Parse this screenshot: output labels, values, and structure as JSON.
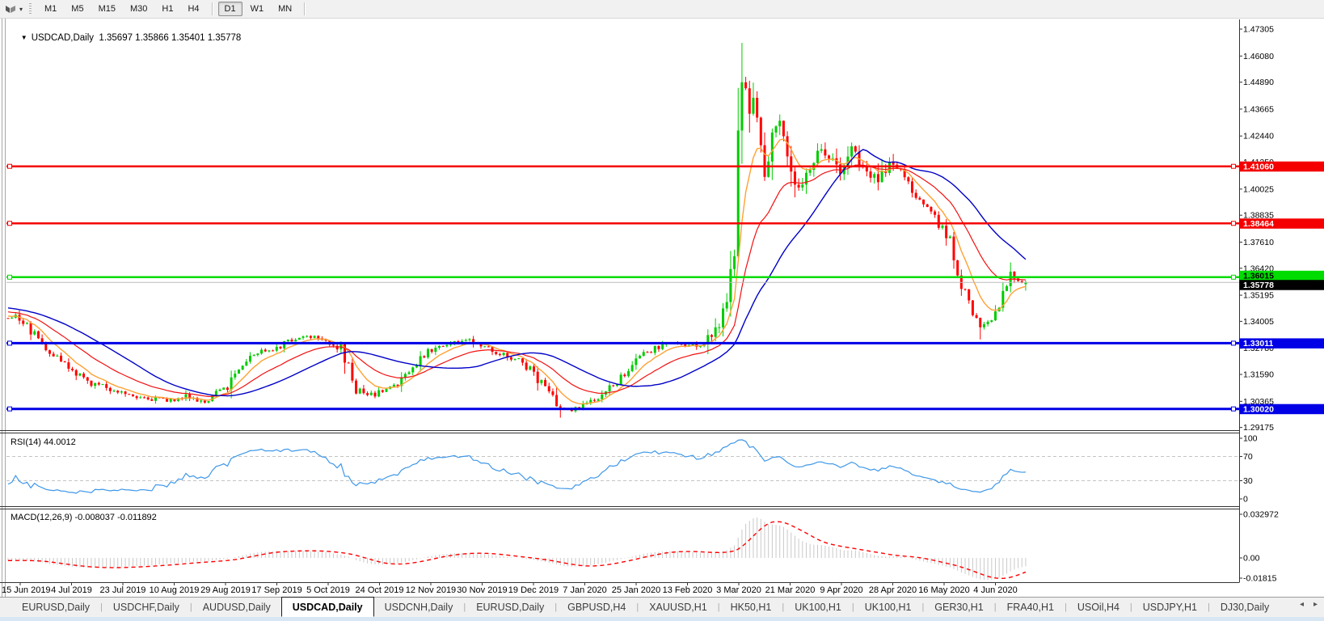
{
  "toolbar": {
    "caret": "▾",
    "timeframes": [
      {
        "label": "M1",
        "active": false
      },
      {
        "label": "M5",
        "active": false
      },
      {
        "label": "M15",
        "active": false
      },
      {
        "label": "M30",
        "active": false
      },
      {
        "label": "H1",
        "active": false
      },
      {
        "label": "H4",
        "active": false
      },
      {
        "label": "D1",
        "active": true
      },
      {
        "label": "W1",
        "active": false
      },
      {
        "label": "MN",
        "active": false
      }
    ]
  },
  "chart": {
    "dropdown_caret": "▼",
    "symbol": "USDCAD,Daily",
    "ohlc_text": "1.35697 1.35866 1.35401 1.35778"
  },
  "price_axis": {
    "ticks": [
      "1.47305",
      "1.46080",
      "1.44890",
      "1.43665",
      "1.42440",
      "1.41250",
      "1.40025",
      "1.38835",
      "1.37610",
      "1.36420",
      "1.35195",
      "1.34005",
      "1.32780",
      "1.31590",
      "1.30365",
      "1.29175"
    ]
  },
  "time_axis": {
    "dates": [
      "15 Jun 2019",
      "4 Jul 2019",
      "23 Jul 2019",
      "10 Aug 2019",
      "29 Aug 2019",
      "17 Sep 2019",
      "5 Oct 2019",
      "24 Oct 2019",
      "12 Nov 2019",
      "30 Nov 2019",
      "19 Dec 2019",
      "7 Jan 2020",
      "25 Jan 2020",
      "13 Feb 2020",
      "3 Mar 2020",
      "21 Mar 2020",
      "9 Apr 2020",
      "28 Apr 2020",
      "16 May 2020",
      "4 Jun 2020"
    ]
  },
  "levels": [
    {
      "label": "1.41060",
      "price": 1.4106,
      "color": "#F40000",
      "text_color": "#FFFFFF",
      "width": 2.5
    },
    {
      "label": "1.38464",
      "price": 1.38464,
      "color": "#F40000",
      "text_color": "#FFFFFF",
      "width": 2.5
    },
    {
      "label": "1.36015",
      "price": 1.36015,
      "color": "#00DC00",
      "text_color": "#000000",
      "width": 2.5
    },
    {
      "label": "1.33011",
      "price": 1.33011,
      "color": "#0000E6",
      "text_color": "#FFFFFF",
      "width": 3
    },
    {
      "label": "1.30020",
      "price": 1.3002,
      "color": "#0000E6",
      "text_color": "#FFFFFF",
      "width": 3
    }
  ],
  "current_price": {
    "label": "1.35778",
    "price": 1.35778,
    "line_color": "#BBBBBB",
    "badge_bg": "#000000",
    "text_color": "#FFFFFF"
  },
  "rsi_panel": {
    "label": "RSI(14) 44.0012",
    "ticks": [
      {
        "label": "100",
        "value": 100
      },
      {
        "label": "70",
        "value": 70
      },
      {
        "label": "30",
        "value": 30
      },
      {
        "label": "0",
        "value": 0
      }
    ],
    "dashed_levels": [
      70,
      30
    ]
  },
  "macd_panel": {
    "label": "MACD(12,26,9) -0.008037 -0.011892",
    "ticks": [
      {
        "label": "0.032972",
        "value": 0.032972
      },
      {
        "label": "0.00",
        "value": 0
      },
      {
        "label": "-0.01815",
        "value": -0.01815
      }
    ]
  },
  "tabs": {
    "items": [
      {
        "label": "EURUSD,Daily",
        "active": false
      },
      {
        "label": "USDCHF,Daily",
        "active": false
      },
      {
        "label": "AUDUSD,Daily",
        "active": false
      },
      {
        "label": "USDCAD,Daily",
        "active": true
      },
      {
        "label": "USDCNH,Daily",
        "active": false
      },
      {
        "label": "EURUSD,Daily",
        "active": false
      },
      {
        "label": "GBPUSD,H4",
        "active": false
      },
      {
        "label": "XAUUSD,H1",
        "active": false
      },
      {
        "label": "HK50,H1",
        "active": false
      },
      {
        "label": "UK100,H1",
        "active": false
      },
      {
        "label": "UK100,H1",
        "active": false
      },
      {
        "label": "GER30,H1",
        "active": false
      },
      {
        "label": "FRA40,H1",
        "active": false
      },
      {
        "label": "USOil,H4",
        "active": false
      },
      {
        "label": "USDJPY,H1",
        "active": false
      },
      {
        "label": "DJ30,Daily",
        "active": false
      }
    ],
    "scroll_left": "◂",
    "scroll_right": "▸"
  },
  "colors": {
    "bull": "#00CC00",
    "bear": "#FF0000",
    "ma_fast": "#FFA133",
    "ma_mid": "#F21010",
    "ma_slow": "#0000C8",
    "rsi": "#3E97E8",
    "rsi_dash": "#C4C4C4",
    "macd_hist": "#C9C9C9",
    "macd_signal": "#FF0000",
    "axis_line": "#333333",
    "axis_text": "#000000"
  },
  "chart_data": {
    "type": "candlestick",
    "symbol": "USDCAD",
    "timeframe": "Daily",
    "current_bar": {
      "open": 1.35697,
      "high": 1.35866,
      "low": 1.35401,
      "close": 1.35778
    },
    "visible_price_range": [
      1.29175,
      1.47305
    ],
    "horizontal_levels": [
      1.4106,
      1.38464,
      1.36015,
      1.33011,
      1.3002
    ],
    "indicators": [
      {
        "name": "RSI",
        "period": 14,
        "value": 44.0012,
        "range": [
          0,
          100
        ],
        "marked_levels": [
          30,
          70
        ]
      },
      {
        "name": "MACD",
        "fast": 12,
        "slow": 26,
        "signal": 9,
        "macd_value": -0.008037,
        "signal_value": -0.011892,
        "visible_range": [
          -0.01815,
          0.032972
        ]
      },
      {
        "name": "MA-fast"
      },
      {
        "name": "MA-mid"
      },
      {
        "name": "MA-slow"
      }
    ],
    "extremes": {
      "spike_high": {
        "index": 194,
        "price": 1.4668
      },
      "june_low": {
        "index": 257,
        "price": 1.3318
      },
      "jan_low": {
        "index": 146,
        "price": 1.2962
      }
    },
    "close_waypoints": [
      [
        0,
        1.3415
      ],
      [
        2,
        1.344
      ],
      [
        6,
        1.336
      ],
      [
        11,
        1.327
      ],
      [
        15,
        1.32
      ],
      [
        21,
        1.3125
      ],
      [
        28,
        1.309
      ],
      [
        34,
        1.3063
      ],
      [
        41,
        1.304
      ],
      [
        47,
        1.3058
      ],
      [
        53,
        1.3035
      ],
      [
        58,
        1.311
      ],
      [
        62,
        1.3215
      ],
      [
        66,
        1.326
      ],
      [
        71,
        1.3285
      ],
      [
        75,
        1.3315
      ],
      [
        79,
        1.3338
      ],
      [
        83,
        1.333
      ],
      [
        88,
        1.327
      ],
      [
        92,
        1.3095
      ],
      [
        95,
        1.306
      ],
      [
        98,
        1.3075
      ],
      [
        103,
        1.312
      ],
      [
        107,
        1.3185
      ],
      [
        111,
        1.3265
      ],
      [
        115,
        1.3295
      ],
      [
        121,
        1.3315
      ],
      [
        126,
        1.3295
      ],
      [
        130,
        1.3255
      ],
      [
        135,
        1.3225
      ],
      [
        139,
        1.3165
      ],
      [
        143,
        1.3075
      ],
      [
        146,
        1.2995
      ],
      [
        150,
        1.3005
      ],
      [
        154,
        1.3035
      ],
      [
        158,
        1.3065
      ],
      [
        162,
        1.3155
      ],
      [
        167,
        1.3235
      ],
      [
        171,
        1.3275
      ],
      [
        175,
        1.3305
      ],
      [
        179,
        1.3285
      ],
      [
        183,
        1.3295
      ],
      [
        186,
        1.3345
      ],
      [
        188,
        1.3395
      ],
      [
        190,
        1.3465
      ],
      [
        192,
        1.3725
      ],
      [
        193,
        1.4265
      ],
      [
        194,
        1.4495
      ],
      [
        196,
        1.4345
      ],
      [
        197,
        1.4405
      ],
      [
        199,
        1.4185
      ],
      [
        200,
        1.4065
      ],
      [
        201,
        1.4155
      ],
      [
        203,
        1.4285
      ],
      [
        204,
        1.4315
      ],
      [
        206,
        1.4185
      ],
      [
        207,
        1.4085
      ],
      [
        209,
        1.4005
      ],
      [
        212,
        1.4105
      ],
      [
        214,
        1.4185
      ],
      [
        217,
        1.4145
      ],
      [
        220,
        1.4065
      ],
      [
        223,
        1.4185
      ],
      [
        227,
        1.4085
      ],
      [
        230,
        1.4045
      ],
      [
        233,
        1.4125
      ],
      [
        236,
        1.4085
      ],
      [
        239,
        1.3985
      ],
      [
        243,
        1.3925
      ],
      [
        246,
        1.3845
      ],
      [
        249,
        1.3765
      ],
      [
        252,
        1.3585
      ],
      [
        255,
        1.3425
      ],
      [
        257,
        1.3375
      ],
      [
        260,
        1.3405
      ],
      [
        262,
        1.3465
      ],
      [
        264,
        1.3555
      ],
      [
        265,
        1.3625
      ],
      [
        267,
        1.3585
      ],
      [
        269,
        1.35778
      ]
    ]
  }
}
